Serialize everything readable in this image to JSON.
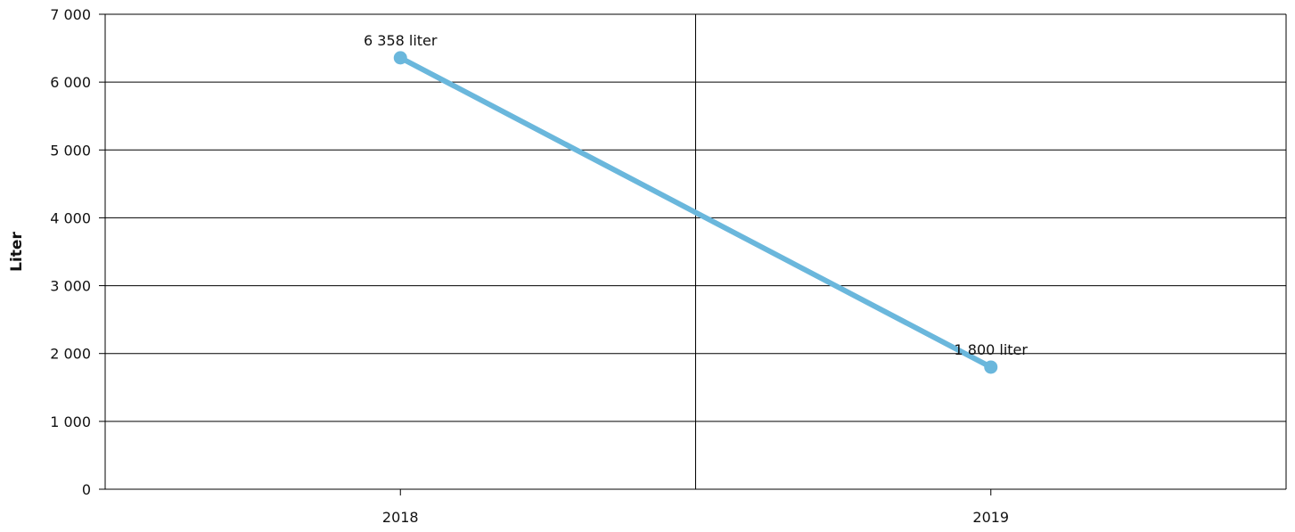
{
  "chart_data": {
    "type": "line",
    "title": "",
    "xlabel": "",
    "ylabel": "Liter",
    "categories": [
      "2018",
      "2019"
    ],
    "series": [
      {
        "values": [
          6358,
          1800
        ],
        "data_labels": [
          "6 358 liter",
          "1 800 liter"
        ],
        "color": "#6ab7dc"
      }
    ],
    "ylim": [
      0,
      7000
    ],
    "yticks": [
      0,
      1000,
      2000,
      3000,
      4000,
      5000,
      6000,
      7000
    ],
    "ytick_labels": [
      "0",
      "1 000",
      "2 000",
      "3 000",
      "4 000",
      "5 000",
      "6 000",
      "7 000"
    ],
    "grid": true,
    "legend": "none"
  }
}
